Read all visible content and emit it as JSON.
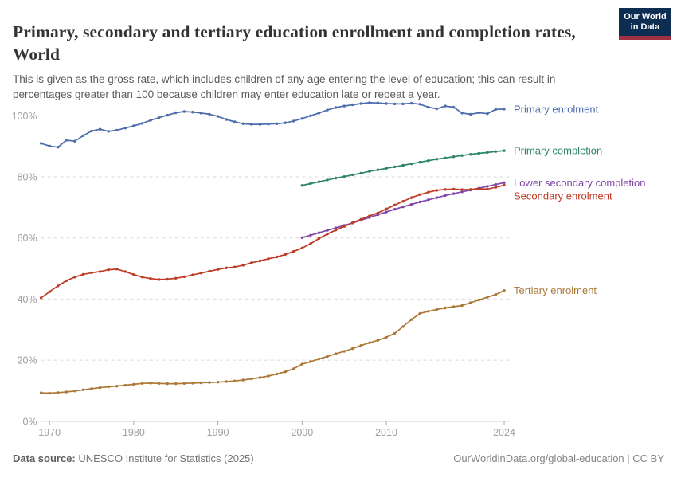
{
  "header": {
    "title": "Primary, secondary and tertiary education enrollment and completion rates, World",
    "subtitle": "This is given as the gross rate, which includes children of any age entering the level of education; this can result in percentages greater than 100 because children may enter education late or repeat a year.",
    "logo_line1": "Our World",
    "logo_line2": "in Data"
  },
  "footer": {
    "source_label": "Data source:",
    "source_value": "UNESCO Institute for Statistics (2025)",
    "attribution": "OurWorldinData.org/global-education | CC BY"
  },
  "chart_data": {
    "type": "line",
    "title": "Primary, secondary and tertiary education enrollment and completion rates, World",
    "xlabel": "",
    "ylabel": "",
    "x_range": [
      1969,
      2024
    ],
    "ylim": [
      0,
      107
    ],
    "x_ticks": [
      1970,
      1980,
      1990,
      2000,
      2010,
      2024
    ],
    "y_ticks": [
      0,
      20,
      40,
      60,
      80,
      100
    ],
    "y_tick_suffix": "%",
    "grid": "horizontal-dashed",
    "legend_position": "right-of-line-ends",
    "axis_text_color": "#9e9e9e",
    "grid_color": "#dadada",
    "series": [
      {
        "name": "Primary enrolment",
        "color": "#4C6CAC",
        "start_year": 1969,
        "values": [
          91.0,
          90.1,
          89.7,
          92.0,
          91.7,
          93.5,
          95.0,
          95.6,
          94.9,
          95.3,
          96.0,
          96.7,
          97.5,
          98.5,
          99.4,
          100.2,
          101.0,
          101.4,
          101.2,
          100.9,
          100.5,
          99.8,
          98.8,
          98.0,
          97.4,
          97.2,
          97.2,
          97.3,
          97.4,
          97.7,
          98.3,
          99.1,
          100.0,
          100.9,
          101.9,
          102.7,
          103.2,
          103.6,
          104.0,
          104.3,
          104.2,
          104.0,
          103.9,
          103.9,
          104.1,
          103.8,
          102.8,
          102.3,
          103.2,
          102.8,
          100.9,
          100.5,
          101.0,
          100.7,
          102.1,
          102.2
        ]
      },
      {
        "name": "Primary completion",
        "color": "#2C8465",
        "start_year": 2000,
        "values": [
          77.2,
          77.8,
          78.4,
          79.0,
          79.6,
          80.1,
          80.7,
          81.2,
          81.8,
          82.3,
          82.8,
          83.3,
          83.8,
          84.3,
          84.8,
          85.3,
          85.8,
          86.2,
          86.6,
          87.0,
          87.4,
          87.7,
          88.0,
          88.3,
          88.6
        ]
      },
      {
        "name": "Lower secondary completion",
        "color": "#8045A6",
        "start_year": 2000,
        "values": [
          60.1,
          60.9,
          61.7,
          62.5,
          63.3,
          64.1,
          64.9,
          65.8,
          66.7,
          67.6,
          68.5,
          69.4,
          70.2,
          71.0,
          71.8,
          72.5,
          73.2,
          73.9,
          74.5,
          75.1,
          75.7,
          76.3,
          76.9,
          77.5,
          78.1
        ]
      },
      {
        "name": "Secondary enrolment",
        "color": "#BE3B26",
        "start_year": 1969,
        "values": [
          40.4,
          42.4,
          44.3,
          46.0,
          47.2,
          48.1,
          48.6,
          49.0,
          49.6,
          49.8,
          49.0,
          48.0,
          47.2,
          46.7,
          46.4,
          46.5,
          46.8,
          47.3,
          47.9,
          48.5,
          49.1,
          49.7,
          50.2,
          50.5,
          51.1,
          51.9,
          52.5,
          53.2,
          53.8,
          54.6,
          55.6,
          56.7,
          58.1,
          59.8,
          61.3,
          62.6,
          63.8,
          65.0,
          66.1,
          67.2,
          68.2,
          69.5,
          70.8,
          72.0,
          73.2,
          74.2,
          75.0,
          75.6,
          75.9,
          76.0,
          75.8,
          75.9,
          76.1,
          76.0,
          76.6,
          77.3
        ]
      },
      {
        "name": "Tertiary enrolment",
        "color": "#AC7838",
        "start_year": 1969,
        "values": [
          9.3,
          9.2,
          9.4,
          9.6,
          9.9,
          10.3,
          10.7,
          11.0,
          11.3,
          11.5,
          11.8,
          12.1,
          12.4,
          12.5,
          12.4,
          12.3,
          12.3,
          12.4,
          12.5,
          12.6,
          12.7,
          12.8,
          13.0,
          13.2,
          13.5,
          13.9,
          14.3,
          14.8,
          15.5,
          16.2,
          17.2,
          18.7,
          19.5,
          20.4,
          21.2,
          22.1,
          22.9,
          23.8,
          24.8,
          25.7,
          26.5,
          27.5,
          28.8,
          31.0,
          33.3,
          35.3,
          36.0,
          36.6,
          37.1,
          37.5,
          37.9,
          38.8,
          39.7,
          40.6,
          41.5,
          42.8
        ]
      }
    ]
  }
}
